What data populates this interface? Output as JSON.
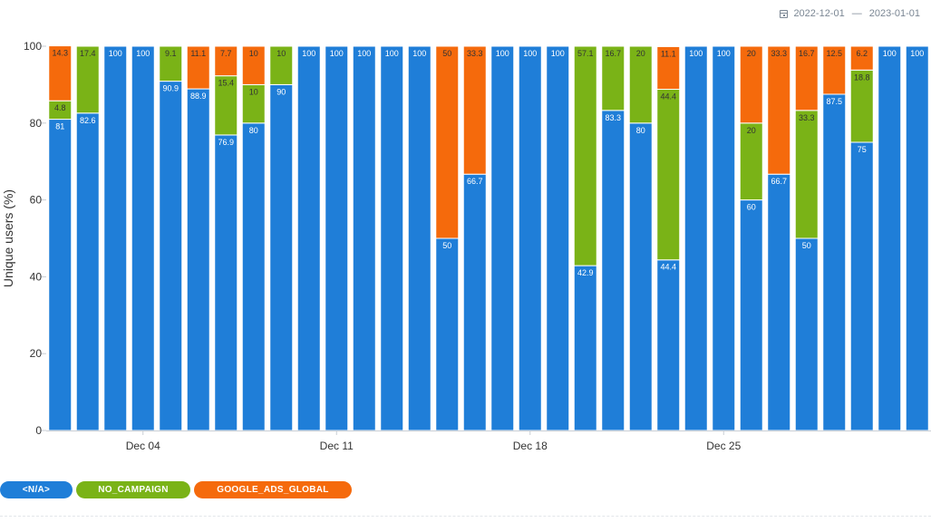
{
  "date_range": {
    "start": "2022-12-01",
    "separator": "—",
    "end": "2023-01-01",
    "icon": "calendar-icon"
  },
  "legend": [
    {
      "label": "<N/A>",
      "color": "#1f7ed8"
    },
    {
      "label": "NO_CAMPAIGN",
      "color": "#7ab317"
    },
    {
      "label": "GOOGLE_ADS_GLOBAL",
      "color": "#f56a0c"
    }
  ],
  "chart_data": {
    "type": "bar",
    "stacked": true,
    "ylabel": "Unique users (%)",
    "ylim": [
      0,
      100
    ],
    "yticks": [
      0,
      20,
      40,
      60,
      80,
      100
    ],
    "x_tick_labels": [
      {
        "label": "Dec 04",
        "category_index": 3
      },
      {
        "label": "Dec 11",
        "category_index": 10
      },
      {
        "label": "Dec 18",
        "category_index": 17
      },
      {
        "label": "Dec 25",
        "category_index": 24
      }
    ],
    "categories": [
      "2022-12-01",
      "2022-12-02",
      "2022-12-03",
      "2022-12-04",
      "2022-12-05",
      "2022-12-06",
      "2022-12-07",
      "2022-12-08",
      "2022-12-09",
      "2022-12-10",
      "2022-12-11",
      "2022-12-12",
      "2022-12-13",
      "2022-12-14",
      "2022-12-15",
      "2022-12-16",
      "2022-12-17",
      "2022-12-18",
      "2022-12-19",
      "2022-12-20",
      "2022-12-21",
      "2022-12-22",
      "2022-12-23",
      "2022-12-24",
      "2022-12-25",
      "2022-12-26",
      "2022-12-27",
      "2022-12-28",
      "2022-12-29",
      "2022-12-30",
      "2022-12-31",
      "2023-01-01"
    ],
    "series": [
      {
        "name": "<N/A>",
        "color": "#1f7ed8",
        "values": [
          81,
          82.6,
          100,
          100,
          90.9,
          88.9,
          76.9,
          80,
          90,
          100,
          100,
          100,
          100,
          100,
          50,
          66.7,
          100,
          100,
          100,
          42.9,
          83.3,
          80,
          44.4,
          100,
          100,
          60,
          66.7,
          50,
          87.5,
          75,
          100,
          100
        ]
      },
      {
        "name": "NO_CAMPAIGN",
        "color": "#7ab317",
        "values": [
          4.8,
          17.4,
          0,
          0,
          9.1,
          0,
          15.4,
          10,
          10,
          0,
          0,
          0,
          0,
          0,
          0,
          0,
          0,
          0,
          0,
          57.1,
          16.7,
          20,
          44.4,
          0,
          0,
          20,
          0,
          33.3,
          0,
          18.8,
          0,
          0
        ]
      },
      {
        "name": "GOOGLE_ADS_GLOBAL",
        "color": "#f56a0c",
        "values": [
          14.3,
          0,
          0,
          0,
          0,
          11.1,
          7.7,
          10,
          0,
          0,
          0,
          0,
          0,
          0,
          50,
          33.3,
          0,
          0,
          0,
          0,
          0,
          0,
          11.1,
          0,
          0,
          20,
          33.3,
          16.7,
          12.5,
          6.2,
          0,
          0
        ]
      }
    ]
  }
}
